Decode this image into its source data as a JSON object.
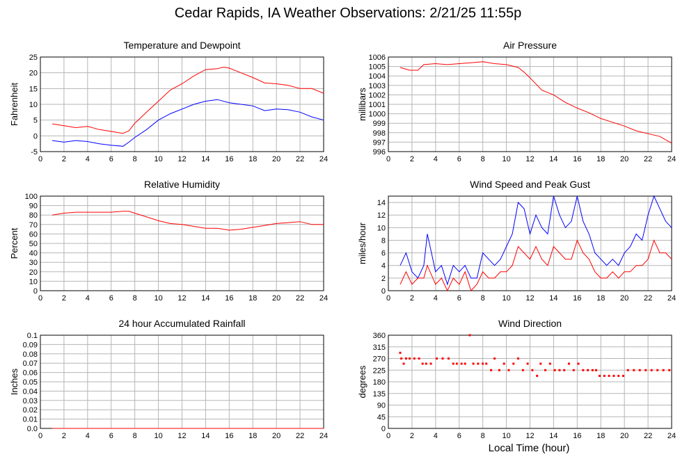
{
  "page": {
    "title": "Cedar Rapids, IA Weather Observations: 2/21/25 11:55p",
    "x_axis_label": "Local Time (hour)"
  },
  "chart_data": [
    {
      "id": "temp",
      "type": "line",
      "title": "Temperature and Dewpoint",
      "ylabel": "Fahrenheit",
      "xlabel": "",
      "xlim": [
        0,
        24
      ],
      "ylim": [
        -5,
        25
      ],
      "xticks": [
        0,
        2,
        4,
        6,
        8,
        10,
        12,
        14,
        16,
        18,
        20,
        22,
        24
      ],
      "yticks": [
        -5,
        0,
        5,
        10,
        15,
        20,
        25
      ],
      "grid": true,
      "series": [
        {
          "color": "#ff0000",
          "x": [
            1,
            2,
            3,
            4,
            5,
            6,
            7,
            7.5,
            8,
            9,
            10,
            11,
            12,
            13,
            14,
            15,
            15.5,
            16,
            17,
            18,
            19,
            20,
            21,
            22,
            23,
            24
          ],
          "y": [
            3.8,
            3.2,
            2.6,
            3,
            2,
            1.4,
            0.8,
            1.6,
            4,
            7.5,
            11,
            14.5,
            16.5,
            19,
            21,
            21.3,
            21.8,
            21.5,
            20,
            18.5,
            16.8,
            16.5,
            16,
            15,
            15,
            13.5
          ]
        },
        {
          "color": "#0000ff",
          "x": [
            1,
            2,
            3,
            4,
            5,
            6,
            7,
            7.5,
            8,
            9,
            10,
            11,
            12,
            13,
            14,
            15,
            16,
            17,
            18,
            19,
            20,
            21,
            22,
            23,
            24
          ],
          "y": [
            -1.5,
            -2,
            -1.5,
            -1.8,
            -2.5,
            -3,
            -3.3,
            -2,
            -0.5,
            2,
            5,
            7,
            8.5,
            10,
            11,
            11.5,
            10.5,
            10,
            9.5,
            8,
            8.5,
            8.3,
            7.5,
            6,
            5
          ]
        }
      ]
    },
    {
      "id": "pressure",
      "type": "line",
      "title": "Air Pressure",
      "ylabel": "millibars",
      "xlabel": "",
      "xlim": [
        0,
        24
      ],
      "ylim": [
        996,
        1006
      ],
      "xticks": [
        0,
        2,
        4,
        6,
        8,
        10,
        12,
        14,
        16,
        18,
        20,
        22,
        24
      ],
      "yticks": [
        996,
        997,
        998,
        999,
        1000,
        1001,
        1002,
        1003,
        1004,
        1005,
        1006
      ],
      "grid": true,
      "series": [
        {
          "color": "#ff0000",
          "x": [
            1,
            1.8,
            2.5,
            3,
            4,
            5,
            6,
            7,
            8,
            9,
            10,
            11,
            11.5,
            12,
            13,
            14,
            15,
            16,
            17,
            18,
            19,
            20,
            21,
            22,
            23,
            24
          ],
          "y": [
            1004.9,
            1004.6,
            1004.6,
            1005.2,
            1005.3,
            1005.2,
            1005.3,
            1005.4,
            1005.5,
            1005.3,
            1005.2,
            1004.9,
            1004.4,
            1003.8,
            1002.5,
            1002,
            1001.2,
            1000.6,
            1000.1,
            999.5,
            999.1,
            998.7,
            998.2,
            997.9,
            997.6,
            996.9
          ]
        }
      ]
    },
    {
      "id": "humidity",
      "type": "line",
      "title": "Relative Humidity",
      "ylabel": "Percent",
      "xlabel": "",
      "xlim": [
        0,
        24
      ],
      "ylim": [
        0,
        100
      ],
      "xticks": [
        0,
        2,
        4,
        6,
        8,
        10,
        12,
        14,
        16,
        18,
        20,
        22,
        24
      ],
      "yticks": [
        0,
        10,
        20,
        30,
        40,
        50,
        60,
        70,
        80,
        90,
        100
      ],
      "grid": true,
      "series": [
        {
          "color": "#ff0000",
          "x": [
            1,
            2,
            3,
            4,
            5,
            6,
            7,
            7.5,
            8,
            9,
            10,
            11,
            12,
            13,
            14,
            15,
            16,
            17,
            18,
            19,
            20,
            21,
            22,
            23,
            24
          ],
          "y": [
            80,
            82,
            83,
            83,
            83,
            83,
            84,
            84,
            82,
            78,
            74,
            71,
            70,
            68,
            66,
            66,
            64,
            65,
            67,
            69,
            71,
            72,
            73,
            70,
            70
          ]
        }
      ]
    },
    {
      "id": "wind",
      "type": "line",
      "title": "Wind Speed and Peak Gust",
      "ylabel": "miles/hour",
      "xlabel": "",
      "xlim": [
        0,
        24
      ],
      "ylim": [
        0,
        15
      ],
      "xticks": [
        0,
        2,
        4,
        6,
        8,
        10,
        12,
        14,
        16,
        18,
        20,
        22,
        24
      ],
      "yticks": [
        0,
        2,
        4,
        6,
        8,
        10,
        12,
        14
      ],
      "grid": true,
      "series": [
        {
          "color": "#0000ff",
          "x": [
            1,
            1.5,
            2,
            2.5,
            3,
            3.3,
            4,
            4.5,
            5,
            5.5,
            6,
            6.5,
            7,
            7.5,
            8,
            8.5,
            9,
            9.5,
            10,
            10.5,
            11,
            11.5,
            12,
            12.5,
            13,
            13.5,
            14,
            14.5,
            15,
            15.5,
            16,
            16.5,
            17,
            17.5,
            18,
            18.5,
            19,
            19.5,
            20,
            20.5,
            21,
            21.5,
            22,
            22.5,
            23,
            23.5,
            24
          ],
          "y": [
            4,
            6,
            3,
            2,
            4,
            9,
            3,
            4,
            1,
            4,
            3,
            4,
            2,
            2,
            6,
            5,
            4,
            5,
            7,
            9,
            14,
            13,
            9,
            12,
            10,
            9,
            15,
            12,
            10,
            11,
            15,
            11,
            9,
            6,
            5,
            4,
            5,
            4,
            6,
            7,
            9,
            8,
            12,
            15,
            13,
            11,
            10
          ]
        },
        {
          "color": "#ff0000",
          "x": [
            1,
            1.5,
            2,
            2.5,
            3,
            3.3,
            4,
            4.5,
            5,
            5.5,
            6,
            6.5,
            7,
            7.5,
            8,
            8.5,
            9,
            9.5,
            10,
            10.5,
            11,
            11.5,
            12,
            12.5,
            13,
            13.5,
            14,
            14.5,
            15,
            15.5,
            16,
            16.5,
            17,
            17.5,
            18,
            18.5,
            19,
            19.5,
            20,
            20.5,
            21,
            21.5,
            22,
            22.5,
            23,
            23.5,
            24
          ],
          "y": [
            1,
            3,
            1,
            2,
            2,
            4,
            1,
            2,
            0,
            2,
            1,
            3,
            0,
            1,
            3,
            2,
            2,
            3,
            3,
            4,
            7,
            6,
            5,
            7,
            5,
            4,
            7,
            6,
            5,
            5,
            8,
            6,
            5,
            3,
            2,
            2,
            3,
            2,
            3,
            3,
            4,
            4,
            5,
            8,
            6,
            6,
            5
          ]
        }
      ]
    },
    {
      "id": "rain",
      "type": "line",
      "title": "24 hour Accumulated Rainfall",
      "ylabel": "Inches",
      "xlabel": "",
      "xlim": [
        0,
        24
      ],
      "ylim": [
        0,
        0.1
      ],
      "xticks": [
        0,
        2,
        4,
        6,
        8,
        10,
        12,
        14,
        16,
        18,
        20,
        22,
        24
      ],
      "yticks": [
        0.0,
        0.01,
        0.02,
        0.03,
        0.04,
        0.05,
        0.06,
        0.07,
        0.08,
        0.09,
        0.1
      ],
      "ytick_labels": [
        "0.0",
        "0.01",
        "0.02",
        "0.03",
        "0.04",
        "0.05",
        "0.06",
        "0.07",
        "0.08",
        "0.09",
        "0.1"
      ],
      "grid": true,
      "series": [
        {
          "color": "#ff0000",
          "x": [
            1,
            24
          ],
          "y": [
            0,
            0
          ]
        }
      ]
    },
    {
      "id": "direction",
      "type": "scatter",
      "title": "Wind Direction",
      "ylabel": "degrees",
      "xlabel": "Local Time (hour)",
      "xlim": [
        0,
        24
      ],
      "ylim": [
        0,
        360
      ],
      "xticks": [
        0,
        2,
        4,
        6,
        8,
        10,
        12,
        14,
        16,
        18,
        20,
        22,
        24
      ],
      "yticks": [
        0,
        45,
        90,
        135,
        180,
        225,
        270,
        315,
        360
      ],
      "grid": true,
      "series": [
        {
          "color": "#ff0000",
          "x": [
            1,
            1.1,
            1.3,
            1.5,
            1.8,
            2.2,
            2.6,
            2.9,
            3.2,
            3.6,
            4.1,
            4.6,
            5.1,
            5.5,
            5.8,
            6.2,
            6.5,
            6.9,
            7.2,
            7.6,
            8,
            8.3,
            8.7,
            9,
            9.4,
            9.8,
            10.2,
            10.6,
            11,
            11.4,
            11.8,
            12.2,
            12.6,
            12.9,
            13.3,
            13.7,
            14.1,
            14.5,
            14.9,
            15.3,
            15.7,
            16.1,
            16.5,
            16.9,
            17.3,
            17.6,
            17.9,
            18.3,
            18.7,
            19.1,
            19.5,
            19.9,
            20.3,
            20.8,
            21.3,
            21.8,
            22.3,
            22.8,
            23.3,
            23.8
          ],
          "y": [
            292,
            270,
            250,
            270,
            270,
            270,
            270,
            250,
            250,
            250,
            270,
            270,
            270,
            250,
            250,
            250,
            250,
            360,
            250,
            250,
            250,
            250,
            225,
            270,
            225,
            250,
            225,
            250,
            270,
            225,
            250,
            225,
            203,
            250,
            225,
            250,
            225,
            225,
            225,
            250,
            225,
            250,
            225,
            225,
            225,
            225,
            203,
            203,
            203,
            203,
            203,
            203,
            225,
            225,
            225,
            225,
            225,
            225,
            225,
            225
          ]
        }
      ]
    }
  ]
}
